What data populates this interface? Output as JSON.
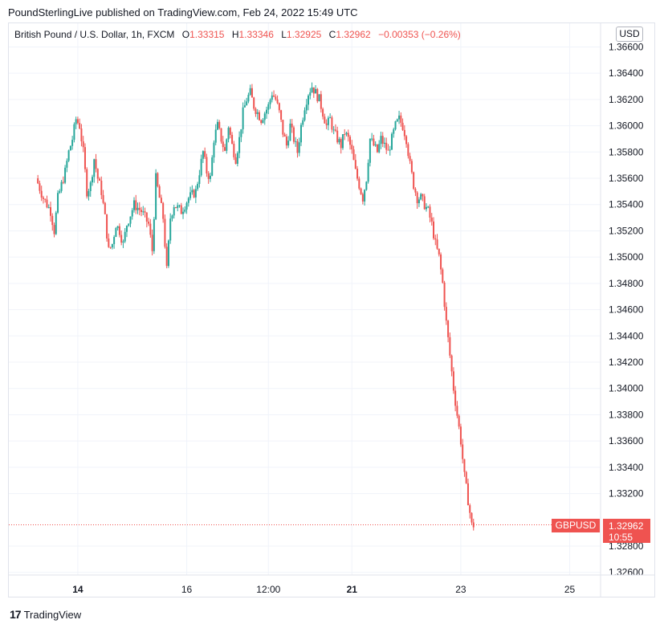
{
  "header": {
    "published": "PoundSterlingLive published on TradingView.com, Feb 24, 2022 15:49 UTC"
  },
  "legend": {
    "symbol": "British Pound / U.S. Dollar, 1h, FXCM",
    "o_label": "O",
    "o_value": "1.33315",
    "h_label": "H",
    "h_value": "1.33346",
    "l_label": "L",
    "l_value": "1.32925",
    "c_label": "C",
    "c_value": "1.32962",
    "change": "−0.00353 (−0.26%)"
  },
  "currency_button": "USD",
  "last_price": {
    "ticker": "GBPUSD",
    "price": "1.32962",
    "countdown": "10:55"
  },
  "footer": {
    "logo": "17",
    "brand": "TradingView"
  },
  "colors": {
    "up": "#26a69a",
    "down": "#ef5350",
    "grid": "#f0f3fa"
  },
  "chart_data": {
    "type": "candlestick",
    "title": "British Pound / U.S. Dollar, 1h, FXCM",
    "y_ticks": [
      "1.36600",
      "1.36400",
      "1.36200",
      "1.36000",
      "1.35800",
      "1.35600",
      "1.35400",
      "1.35200",
      "1.35000",
      "1.34800",
      "1.34600",
      "1.34400",
      "1.34200",
      "1.34000",
      "1.33800",
      "1.33600",
      "1.33400",
      "1.33200",
      "1.32800",
      "1.32600"
    ],
    "ylim": [
      1.3258,
      1.3678
    ],
    "x_ticks": [
      {
        "label": "14",
        "x": 11.0,
        "bold": true
      },
      {
        "label": "16",
        "x": 41.0,
        "bold": false
      },
      {
        "label": "12:00",
        "x": 63.5,
        "bold": false
      },
      {
        "label": "21",
        "x": 86.5,
        "bold": true
      },
      {
        "label": "23",
        "x": 116.5,
        "bold": false
      },
      {
        "label": "25",
        "x": 146.5,
        "bold": false
      }
    ],
    "xlim": [
      -8,
      155
    ],
    "path": [
      [
        0,
        1.356
      ],
      [
        2,
        1.3545
      ],
      [
        4,
        1.3535
      ],
      [
        5,
        1.352
      ],
      [
        6,
        1.3545
      ],
      [
        8,
        1.3565
      ],
      [
        9,
        1.358
      ],
      [
        10,
        1.359
      ],
      [
        11,
        1.3605
      ],
      [
        12,
        1.36
      ],
      [
        13,
        1.358
      ],
      [
        14,
        1.355
      ],
      [
        15,
        1.3555
      ],
      [
        16,
        1.3575
      ],
      [
        17,
        1.356
      ],
      [
        18,
        1.355
      ],
      [
        19,
        1.353
      ],
      [
        20,
        1.3505
      ],
      [
        21,
        1.351
      ],
      [
        22,
        1.3525
      ],
      [
        23,
        1.352
      ],
      [
        24,
        1.351
      ],
      [
        25,
        1.3525
      ],
      [
        27,
        1.354
      ],
      [
        29,
        1.3535
      ],
      [
        31,
        1.3525
      ],
      [
        32,
        1.3505
      ],
      [
        33,
        1.356
      ],
      [
        34,
        1.3545
      ],
      [
        35,
        1.353
      ],
      [
        36,
        1.349
      ],
      [
        37,
        1.353
      ],
      [
        38,
        1.354
      ],
      [
        40,
        1.3535
      ],
      [
        42,
        1.3545
      ],
      [
        44,
        1.355
      ],
      [
        45,
        1.3565
      ],
      [
        46,
        1.358
      ],
      [
        47,
        1.3565
      ],
      [
        48,
        1.356
      ],
      [
        49,
        1.359
      ],
      [
        50,
        1.36
      ],
      [
        51,
        1.359
      ],
      [
        52,
        1.358
      ],
      [
        53,
        1.36
      ],
      [
        54,
        1.3585
      ],
      [
        55,
        1.3575
      ],
      [
        56,
        1.359
      ],
      [
        57,
        1.361
      ],
      [
        58,
        1.362
      ],
      [
        59,
        1.3625
      ],
      [
        60,
        1.3615
      ],
      [
        61,
        1.361
      ],
      [
        62,
        1.3605
      ],
      [
        63,
        1.361
      ],
      [
        64,
        1.3615
      ],
      [
        65,
        1.3625
      ],
      [
        66,
        1.362
      ],
      [
        67,
        1.361
      ],
      [
        68,
        1.3595
      ],
      [
        69,
        1.3585
      ],
      [
        70,
        1.36
      ],
      [
        71,
        1.359
      ],
      [
        72,
        1.358
      ],
      [
        73,
        1.36
      ],
      [
        74,
        1.3615
      ],
      [
        75,
        1.3625
      ],
      [
        76,
        1.363
      ],
      [
        77,
        1.3625
      ],
      [
        78,
        1.362
      ],
      [
        79,
        1.361
      ],
      [
        80,
        1.36
      ],
      [
        81,
        1.3605
      ],
      [
        82,
        1.3595
      ],
      [
        83,
        1.359
      ],
      [
        84,
        1.3585
      ],
      [
        85,
        1.3595
      ],
      [
        86,
        1.359
      ],
      [
        87,
        1.358
      ],
      [
        88,
        1.3565
      ],
      [
        89,
        1.3555
      ],
      [
        90,
        1.3545
      ],
      [
        91,
        1.356
      ],
      [
        92,
        1.359
      ],
      [
        93,
        1.3585
      ],
      [
        94,
        1.358
      ],
      [
        95,
        1.359
      ],
      [
        96,
        1.3585
      ],
      [
        97,
        1.358
      ],
      [
        98,
        1.359
      ],
      [
        99,
        1.36
      ],
      [
        100,
        1.3605
      ],
      [
        101,
        1.36
      ],
      [
        102,
        1.359
      ],
      [
        103,
        1.357
      ],
      [
        104,
        1.3555
      ],
      [
        105,
        1.3545
      ],
      [
        106,
        1.3545
      ],
      [
        107,
        1.354
      ],
      [
        108,
        1.3535
      ],
      [
        109,
        1.3525
      ],
      [
        110,
        1.351
      ],
      [
        111,
        1.35
      ],
      [
        112,
        1.348
      ],
      [
        113,
        1.345
      ],
      [
        114,
        1.3425
      ],
      [
        115,
        1.34
      ],
      [
        116,
        1.338
      ],
      [
        117,
        1.336
      ],
      [
        118,
        1.3333
      ],
      [
        119,
        1.3315
      ],
      [
        120,
        1.3296
      ]
    ]
  }
}
